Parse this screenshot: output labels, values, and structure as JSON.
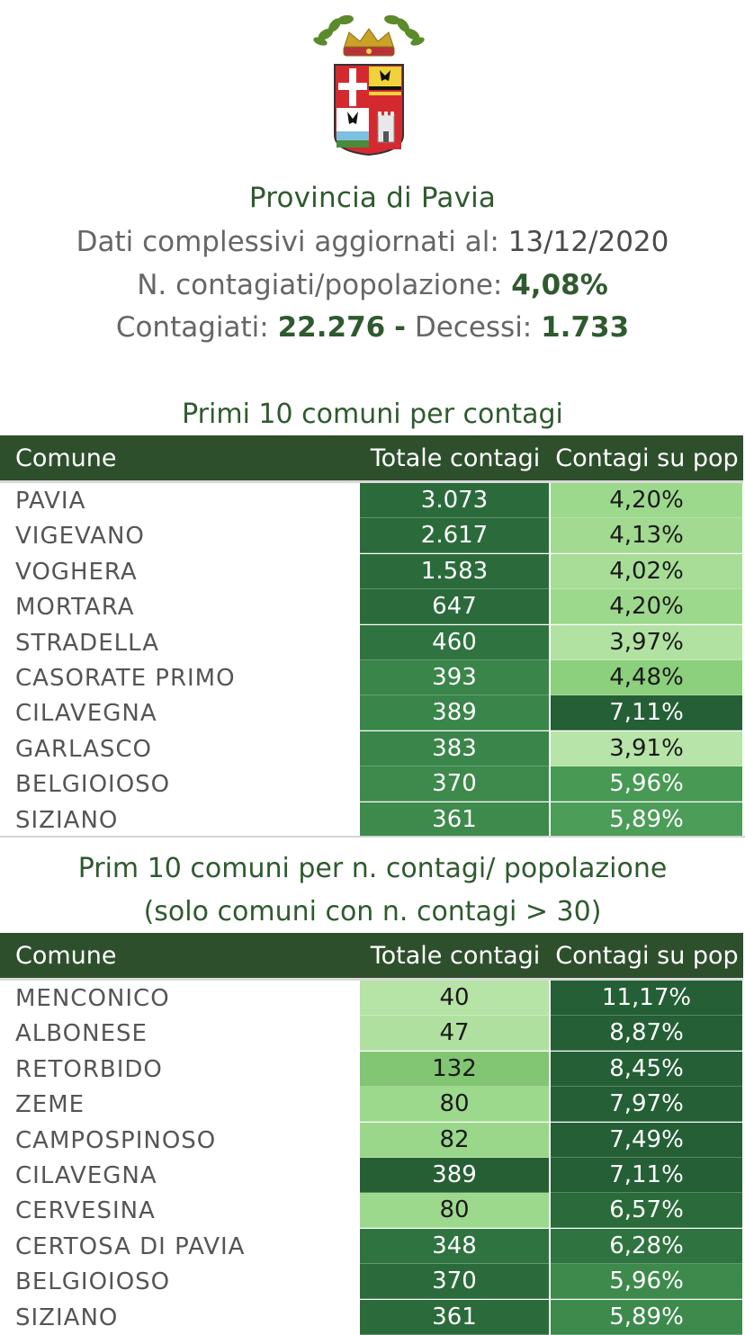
{
  "header": {
    "title": "Provincia di Pavia",
    "updated_label": "Dati complessivi aggiornati al:",
    "updated_value": "13/12/2020",
    "ratio_label": "N. contagiati/popolazione:",
    "ratio_value": "4,08%",
    "cases_label": "Contagiati:",
    "cases_value": "22.276",
    "separator": "-",
    "deaths_label": "Decessi:",
    "deaths_value": "1.733"
  },
  "table1": {
    "title": "Primi 10 comuni per contagi",
    "columns": [
      "Comune",
      "Totale contagi",
      "Contagi su pop"
    ],
    "rows": [
      {
        "comune": "PAVIA",
        "totale": "3.073",
        "pop": "4,20%",
        "c1": "#2b6b3b",
        "t1": "#ffffff",
        "c2": "#9dd98d",
        "t2": "#1a1a1a"
      },
      {
        "comune": "VIGEVANO",
        "totale": "2.617",
        "pop": "4,13%",
        "c1": "#2b6b3b",
        "t1": "#ffffff",
        "c2": "#a1da90",
        "t2": "#1a1a1a"
      },
      {
        "comune": "VOGHERA",
        "totale": "1.583",
        "pop": "4,02%",
        "c1": "#2b6b3b",
        "t1": "#ffffff",
        "c2": "#a7dd97",
        "t2": "#1a1a1a"
      },
      {
        "comune": "MORTARA",
        "totale": "647",
        "pop": "4,20%",
        "c1": "#2b6b3b",
        "t1": "#ffffff",
        "c2": "#9dd98d",
        "t2": "#1a1a1a"
      },
      {
        "comune": "STRADELLA",
        "totale": "460",
        "pop": "3,97%",
        "c1": "#2f7440",
        "t1": "#ffffff",
        "c2": "#b1e2a2",
        "t2": "#1a1a1a"
      },
      {
        "comune": "CASORATE PRIMO",
        "totale": "393",
        "pop": "4,48%",
        "c1": "#3a8549",
        "t1": "#ffffff",
        "c2": "#8ccf7d",
        "t2": "#1a1a1a"
      },
      {
        "comune": "CILAVEGNA",
        "totale": "389",
        "pop": "7,11%",
        "c1": "#3a8549",
        "t1": "#ffffff",
        "c2": "#245f35",
        "t2": "#ffffff"
      },
      {
        "comune": "GARLASCO",
        "totale": "383",
        "pop": "3,91%",
        "c1": "#3a8549",
        "t1": "#ffffff",
        "c2": "#b7e4a8",
        "t2": "#1a1a1a"
      },
      {
        "comune": "BELGIOIOSO",
        "totale": "370",
        "pop": "5,96%",
        "c1": "#3d8a4c",
        "t1": "#ffffff",
        "c2": "#479954",
        "t2": "#ffffff"
      },
      {
        "comune": "SIZIANO",
        "totale": "361",
        "pop": "5,89%",
        "c1": "#3d8a4c",
        "t1": "#ffffff",
        "c2": "#4b9d57",
        "t2": "#ffffff"
      }
    ]
  },
  "table2": {
    "title_line1": "Prim 10 comuni per n. contagi/ popolazione",
    "title_line2": "(solo comuni con n. contagi > 30)",
    "columns": [
      "Comune",
      "Totale contagi",
      "Contagi su pop"
    ],
    "rows": [
      {
        "comune": "MENCONICO",
        "totale": "40",
        "pop": "11,17%",
        "c1": "#b6e3a6",
        "t1": "#1a1a1a",
        "c2": "#245f35",
        "t2": "#ffffff"
      },
      {
        "comune": "ALBONESE",
        "totale": "47",
        "pop": "8,87%",
        "c1": "#b0e0a0",
        "t1": "#1a1a1a",
        "c2": "#245f35",
        "t2": "#ffffff"
      },
      {
        "comune": "RETORBIDO",
        "totale": "132",
        "pop": "8,45%",
        "c1": "#82c673",
        "t1": "#1a1a1a",
        "c2": "#245f35",
        "t2": "#ffffff"
      },
      {
        "comune": "ZEME",
        "totale": "80",
        "pop": "7,97%",
        "c1": "#9dd98d",
        "t1": "#1a1a1a",
        "c2": "#245f35",
        "t2": "#ffffff"
      },
      {
        "comune": "CAMPOSPINOSO",
        "totale": "82",
        "pop": "7,49%",
        "c1": "#9bd78b",
        "t1": "#1a1a1a",
        "c2": "#245f35",
        "t2": "#ffffff"
      },
      {
        "comune": "CILAVEGNA",
        "totale": "389",
        "pop": "7,11%",
        "c1": "#275f35",
        "t1": "#ffffff",
        "c2": "#245f35",
        "t2": "#ffffff"
      },
      {
        "comune": "CERVESINA",
        "totale": "80",
        "pop": "6,57%",
        "c1": "#9dd98d",
        "t1": "#1a1a1a",
        "c2": "#2b6b3b",
        "t2": "#ffffff"
      },
      {
        "comune": "CERTOSA DI PAVIA",
        "totale": "348",
        "pop": "6,28%",
        "c1": "#2f7440",
        "t1": "#ffffff",
        "c2": "#2f7440",
        "t2": "#ffffff"
      },
      {
        "comune": "BELGIOIOSO",
        "totale": "370",
        "pop": "5,96%",
        "c1": "#2b6b3b",
        "t1": "#ffffff",
        "c2": "#3d8a4c",
        "t2": "#ffffff"
      },
      {
        "comune": "SIZIANO",
        "totale": "361",
        "pop": "5,89%",
        "c1": "#2b6b3b",
        "t1": "#ffffff",
        "c2": "#3d8a4c",
        "t2": "#ffffff"
      }
    ]
  }
}
